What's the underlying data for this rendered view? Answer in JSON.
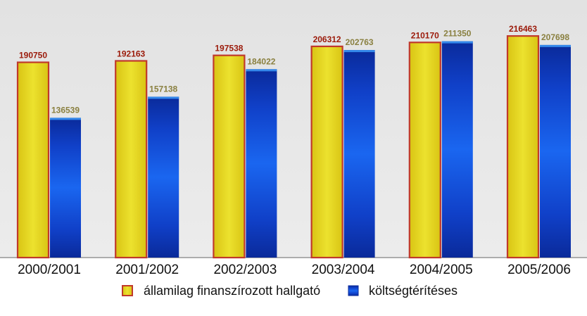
{
  "chart_data": {
    "type": "bar",
    "categories": [
      "2000/2001",
      "2001/2002",
      "2002/2003",
      "2003/2004",
      "2004/2005",
      "2005/2006"
    ],
    "series": [
      {
        "name": "államilag finanszírozott hallgató",
        "values": [
          190750,
          192163,
          197538,
          206312,
          210170,
          216463
        ],
        "color": "#e6d21a",
        "border_color": "#c0392b",
        "label_color": "#9b1a0a"
      },
      {
        "name": "költségtérítéses",
        "values": [
          136539,
          157138,
          184022,
          202763,
          211350,
          207698
        ],
        "color": "#1040d0",
        "label_color": "#8a8040"
      }
    ],
    "ylim": [
      0,
      220000
    ],
    "grid": false,
    "legend_position": "bottom",
    "plot_background": "#e6e6e6"
  }
}
